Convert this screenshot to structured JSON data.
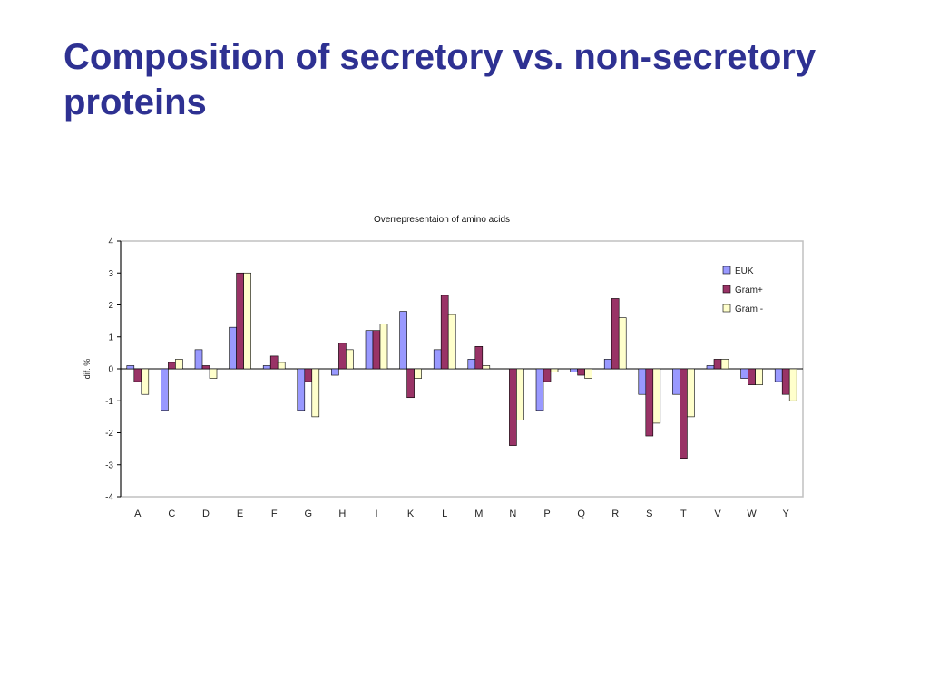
{
  "slide": {
    "title": "Composition of secretory vs. non-secretory proteins"
  },
  "colors": {
    "title": "#2e3192",
    "EUK": "#9999ff",
    "Gram+": "#993366",
    "Gram -": "#ffffcc",
    "plot_border": "#c0c0c0",
    "bar_outline": "#000000"
  },
  "chart_data": {
    "type": "bar",
    "title": "Overrepresentaion of amino acids",
    "xlabel": "",
    "ylabel": "dif. %",
    "ylim": [
      -4,
      4
    ],
    "yticks": [
      4,
      3,
      2,
      1,
      0,
      -1,
      -2,
      -3,
      -4
    ],
    "grid": false,
    "legend_position": "top-right",
    "categories": [
      "A",
      "C",
      "D",
      "E",
      "F",
      "G",
      "H",
      "I",
      "K",
      "L",
      "M",
      "N",
      "P",
      "Q",
      "R",
      "S",
      "T",
      "V",
      "W",
      "Y"
    ],
    "series": [
      {
        "name": "EUK",
        "values": [
          0.1,
          -1.3,
          0.6,
          1.3,
          0.1,
          -1.3,
          -0.2,
          1.2,
          1.8,
          0.6,
          0.3,
          0.0,
          -1.3,
          -0.1,
          0.3,
          -0.8,
          -0.8,
          0.1,
          -0.3,
          -0.4
        ]
      },
      {
        "name": "Gram+",
        "values": [
          -0.4,
          0.2,
          0.1,
          3.0,
          0.4,
          -0.4,
          0.8,
          1.2,
          -0.9,
          2.3,
          0.7,
          -2.4,
          -0.4,
          -0.2,
          2.2,
          -2.1,
          -2.8,
          0.3,
          -0.5,
          -0.8
        ]
      },
      {
        "name": "Gram -",
        "values": [
          -0.8,
          0.3,
          -0.3,
          3.0,
          0.2,
          -1.5,
          0.6,
          1.4,
          -0.3,
          1.7,
          0.1,
          -1.6,
          -0.1,
          -0.3,
          1.6,
          -1.7,
          -1.5,
          0.3,
          -0.5,
          -1.0
        ]
      }
    ]
  }
}
